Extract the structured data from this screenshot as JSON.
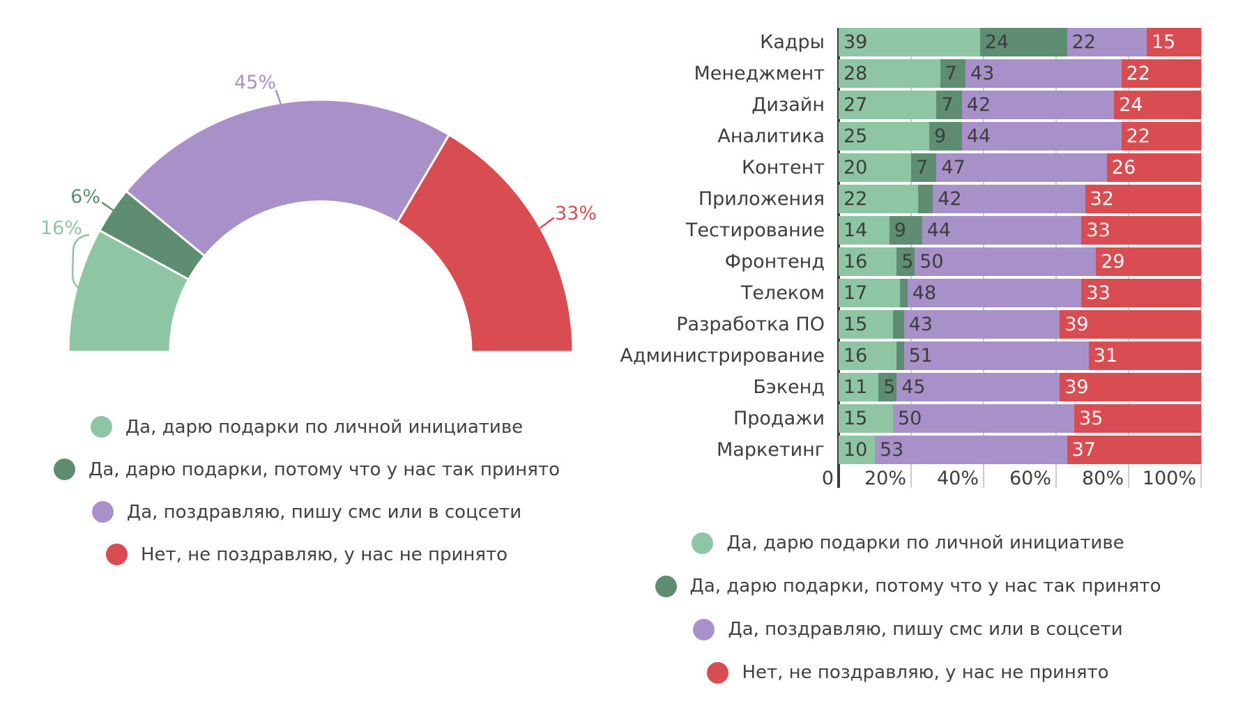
{
  "page": {
    "background": "#ffffff",
    "text_color": "#3D3D3D"
  },
  "palette": {
    "light_green": "#8EC6A3",
    "dark_green": "#5F8D72",
    "purple": "#A890C8",
    "red": "#D94C51",
    "gridline": "#CBCBCB",
    "axis": "#3A3A3A"
  },
  "chart_data": [
    {
      "id": "donut-semicircle",
      "type": "pie",
      "shape": "semicircle-donut",
      "title": "",
      "slices": [
        {
          "label": "Да, дарю подарки по личной инициативе",
          "value_pct": 16,
          "display": "16%",
          "color": "#8EC6A3"
        },
        {
          "label": "Да, дарю подарки, потому что у нас так принято",
          "value_pct": 6,
          "display": "6%",
          "color": "#5F8D72"
        },
        {
          "label": "Да, поздравляю, пишу смс или в соцсети",
          "value_pct": 45,
          "display": "45%",
          "color": "#A890C8"
        },
        {
          "label": "Нет, не поздравляю, у нас не принято",
          "value_pct": 33,
          "display": "33%",
          "color": "#D94C51"
        }
      ],
      "legend_position": "bottom"
    },
    {
      "id": "stacked-bars",
      "type": "bar",
      "stacked": true,
      "orientation": "horizontal",
      "title": "",
      "categories": [
        "Кадры",
        "Менеджмент",
        "Дизайн",
        "Аналитика",
        "Контент",
        "Приложения",
        "Тестирование",
        "Фронтенд",
        "Телеком",
        "Разработка ПО",
        "Администрирование",
        "Бэкенд",
        "Продажи",
        "Маркетинг"
      ],
      "series": [
        {
          "name": "Да, дарю подарки по личной инициативе",
          "color": "#8EC6A3",
          "values": [
            39,
            28,
            27,
            25,
            20,
            22,
            14,
            16,
            17,
            15,
            16,
            11,
            15,
            10
          ]
        },
        {
          "name": "Да, дарю подарки, потому что у нас так принято",
          "color": "#5F8D72",
          "values": [
            24,
            7,
            7,
            9,
            7,
            4,
            9,
            5,
            2,
            3,
            2,
            5,
            0,
            0
          ]
        },
        {
          "name": "Да, поздравляю, пишу смс или в соцсети",
          "color": "#A890C8",
          "values": [
            22,
            43,
            42,
            44,
            47,
            42,
            44,
            50,
            48,
            43,
            51,
            45,
            50,
            53
          ]
        },
        {
          "name": "Нет, не поздравляю, у нас не принято",
          "color": "#D94C51",
          "values": [
            15,
            22,
            24,
            22,
            26,
            32,
            33,
            29,
            33,
            39,
            31,
            39,
            35,
            37
          ]
        }
      ],
      "xlim": [
        0,
        100
      ],
      "x_ticks": [
        "0",
        "20%",
        "40%",
        "60%",
        "80%",
        "100%"
      ],
      "grid": "vertical",
      "value_label_min_shown": 5,
      "legend_position": "bottom"
    }
  ]
}
